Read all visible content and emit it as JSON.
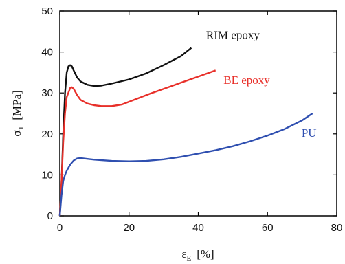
{
  "chart_data": {
    "type": "line",
    "xlabel": {
      "symbol": "ε",
      "subscript": "E",
      "unit": "[%]"
    },
    "ylabel": {
      "symbol": "σ",
      "subscript": "T",
      "unit": "[MPa]"
    },
    "xlim": [
      0,
      80
    ],
    "ylim": [
      0,
      50
    ],
    "x_ticks": [
      0,
      20,
      40,
      60,
      80
    ],
    "y_ticks": [
      0,
      10,
      20,
      30,
      40,
      50
    ],
    "grid": false,
    "series": [
      {
        "name": "RIM epoxy",
        "color": "#111111",
        "points": [
          [
            0,
            0
          ],
          [
            0.5,
            8
          ],
          [
            1,
            20
          ],
          [
            1.5,
            30
          ],
          [
            2,
            35
          ],
          [
            2.5,
            36.5
          ],
          [
            3,
            36.8
          ],
          [
            3.5,
            36.5
          ],
          [
            4,
            35.5
          ],
          [
            5,
            33.8
          ],
          [
            6,
            32.8
          ],
          [
            8,
            32.0
          ],
          [
            10,
            31.7
          ],
          [
            12,
            31.8
          ],
          [
            15,
            32.3
          ],
          [
            20,
            33.3
          ],
          [
            25,
            34.8
          ],
          [
            30,
            36.8
          ],
          [
            35,
            39.0
          ],
          [
            38,
            41.0
          ]
        ]
      },
      {
        "name": "BE epoxy",
        "color": "#e8302a",
        "points": [
          [
            0,
            0
          ],
          [
            0.5,
            8
          ],
          [
            1,
            18
          ],
          [
            1.5,
            25
          ],
          [
            2,
            29
          ],
          [
            3,
            31.2
          ],
          [
            3.5,
            31.4
          ],
          [
            4,
            31.0
          ],
          [
            5,
            29.5
          ],
          [
            6,
            28.3
          ],
          [
            8,
            27.4
          ],
          [
            10,
            27.0
          ],
          [
            12,
            26.8
          ],
          [
            15,
            26.8
          ],
          [
            18,
            27.2
          ],
          [
            22,
            28.5
          ],
          [
            26,
            29.8
          ],
          [
            30,
            31.0
          ],
          [
            35,
            32.5
          ],
          [
            40,
            34.0
          ],
          [
            45,
            35.5
          ]
        ]
      },
      {
        "name": "PU",
        "color": "#2f4fb0",
        "points": [
          [
            0,
            0
          ],
          [
            0.5,
            5
          ],
          [
            1,
            8.5
          ],
          [
            1.5,
            10
          ],
          [
            2,
            11
          ],
          [
            3,
            12.5
          ],
          [
            4,
            13.5
          ],
          [
            5,
            14.0
          ],
          [
            6,
            14.1
          ],
          [
            8,
            13.9
          ],
          [
            10,
            13.7
          ],
          [
            15,
            13.4
          ],
          [
            20,
            13.3
          ],
          [
            25,
            13.4
          ],
          [
            30,
            13.8
          ],
          [
            35,
            14.4
          ],
          [
            40,
            15.2
          ],
          [
            45,
            16.0
          ],
          [
            50,
            17.0
          ],
          [
            55,
            18.2
          ],
          [
            60,
            19.6
          ],
          [
            65,
            21.2
          ],
          [
            70,
            23.3
          ],
          [
            73,
            25.0
          ]
        ]
      }
    ],
    "series_label_colors": {
      "RIM epoxy": "#111111",
      "BE epoxy": "#e8302a",
      "PU": "#2f4fb0"
    }
  }
}
